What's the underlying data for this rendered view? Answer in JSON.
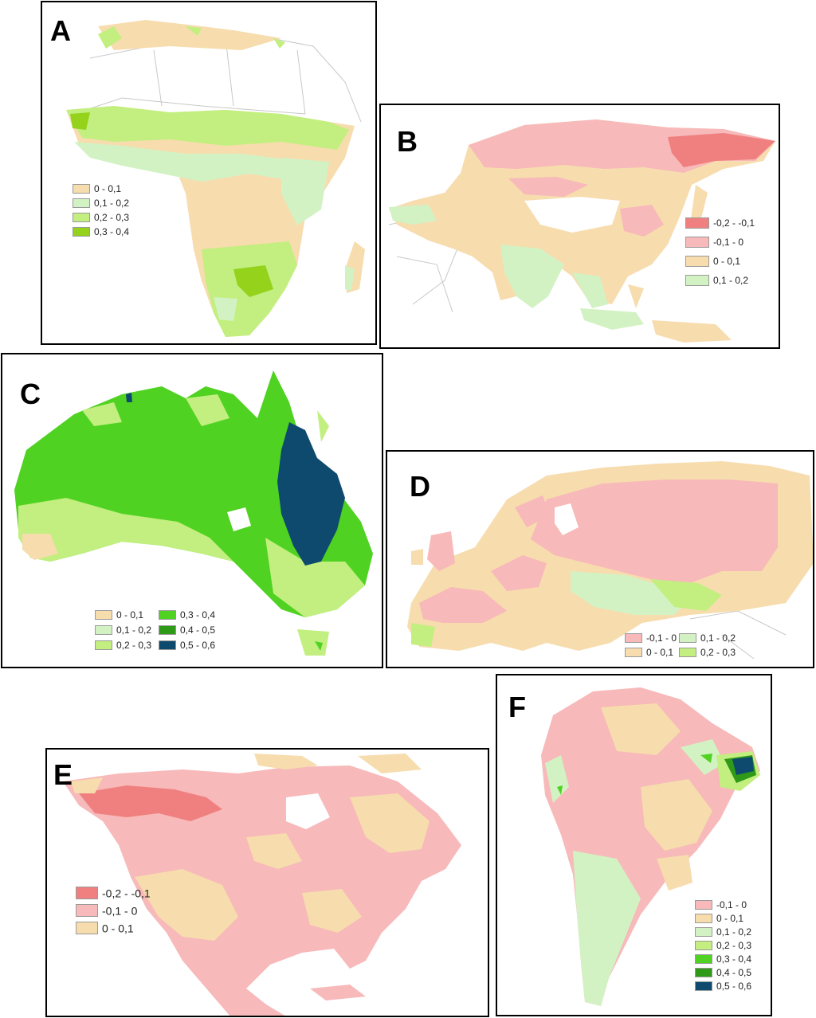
{
  "colors": {
    "-0,2 - -0,1": "#f08080",
    "-0,1 - 0": "#f7b9b9",
    "0 - 0,1": "#f7dcae",
    "0,1 - 0,2": "#d3f2c4",
    "0,2 - 0,3": "#c2ef7f",
    "0,3 - 0,4": "#50d222",
    "0,4 - 0,5": "#2f9a17",
    "0,5 - 0,6": "#0e4a6e",
    "A_0,3 - 0,4": "#94d21c"
  },
  "panels": [
    {
      "label": "A",
      "region": "Africa",
      "legend": [
        "0 - 0,1",
        "0,1 - 0,2",
        "0,2 - 0,3",
        "0,3 - 0,4"
      ]
    },
    {
      "label": "B",
      "region": "Asia",
      "legend": [
        "-0,2 - -0,1",
        "-0,1 - 0",
        "0 - 0,1",
        "0,1 - 0,2"
      ]
    },
    {
      "label": "C",
      "region": "Australia",
      "legend": [
        "0 - 0,1",
        "0,1 - 0,2",
        "0,2 - 0,3",
        "0,3 - 0,4",
        "0,4 - 0,5",
        "0,5 - 0,6"
      ]
    },
    {
      "label": "D",
      "region": "Europe",
      "legend": [
        "-0,1 - 0",
        "0 - 0,1",
        "0,1 - 0,2",
        "0,2 - 0,3"
      ]
    },
    {
      "label": "E",
      "region": "North America",
      "legend": [
        "-0,2 - -0,1",
        "-0,1 - 0",
        "0 - 0,1"
      ]
    },
    {
      "label": "F",
      "region": "South America",
      "legend": [
        "-0,1 - 0",
        "0 - 0,1",
        "0,1 - 0,2",
        "0,2 - 0,3",
        "0,3 - 0,4",
        "0,4 - 0,5",
        "0,5 - 0,6"
      ]
    }
  ]
}
